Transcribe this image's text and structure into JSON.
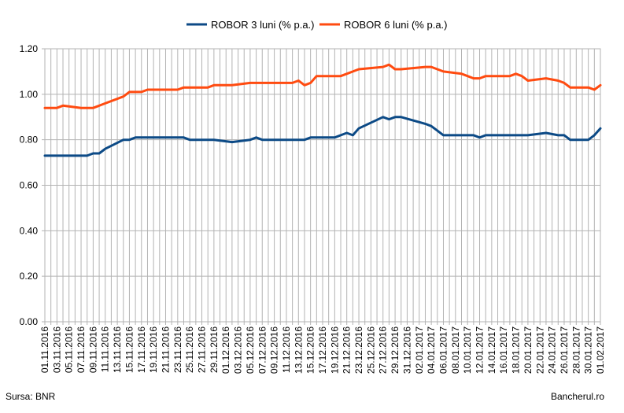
{
  "footer": {
    "source": "Sursa: BNR",
    "brand": "Bancherul.ro"
  },
  "chart_data": {
    "type": "line",
    "title": "",
    "xlabel": "",
    "ylabel": "",
    "ylim": [
      0,
      1.2
    ],
    "yticks": [
      "0.00",
      "0.20",
      "0.40",
      "0.60",
      "0.80",
      "1.00",
      "1.20"
    ],
    "grid": true,
    "legend_position": "top",
    "x": [
      "01.11.2016",
      "02.11.2016",
      "03.11.2016",
      "04.11.2016",
      "07.11.2016",
      "08.11.2016",
      "09.11.2016",
      "10.11.2016",
      "11.11.2016",
      "14.11.2016",
      "15.11.2016",
      "16.11.2016",
      "17.11.2016",
      "18.11.2016",
      "21.11.2016",
      "22.11.2016",
      "23.11.2016",
      "24.11.2016",
      "25.11.2016",
      "28.11.2016",
      "29.11.2016",
      "02.12.2016",
      "05.12.2016",
      "06.12.2016",
      "07.12.2016",
      "08.12.2016",
      "09.12.2016",
      "12.12.2016",
      "13.12.2016",
      "14.12.2016",
      "15.12.2016",
      "16.12.2016",
      "19.12.2016",
      "20.12.2016",
      "21.12.2016",
      "22.12.2016",
      "23.12.2016",
      "27.12.2016",
      "28.12.2016",
      "29.12.2016",
      "30.12.2016",
      "03.01.2017",
      "04.01.2017",
      "05.01.2017",
      "06.01.2017",
      "09.01.2017",
      "10.01.2017",
      "11.01.2017",
      "12.01.2017",
      "13.01.2017",
      "16.01.2017",
      "17.01.2017",
      "18.01.2017",
      "19.01.2017",
      "20.01.2017",
      "23.01.2017",
      "25.01.2017",
      "26.01.2017",
      "27.01.2017",
      "30.01.2017",
      "31.01.2017",
      "01.02.2017"
    ],
    "xticks": [
      "01.11.2016",
      "03.11.2016",
      "05.11.2016",
      "07.11.2016",
      "09.11.2016",
      "11.11.2016",
      "13.11.2016",
      "15.11.2016",
      "17.11.2016",
      "19.11.2016",
      "21.11.2016",
      "23.11.2016",
      "25.11.2016",
      "27.11.2016",
      "29.11.2016",
      "01.12.2016",
      "03.12.2016",
      "05.12.2016",
      "07.12.2016",
      "09.12.2016",
      "11.12.2016",
      "13.12.2016",
      "15.12.2016",
      "17.12.2016",
      "19.12.2016",
      "21.12.2016",
      "23.12.2016",
      "25.12.2016",
      "27.12.2016",
      "29.12.2016",
      "31.12.2016",
      "02.01.2017",
      "04.01.2017",
      "06.01.2017",
      "08.01.2017",
      "10.01.2017",
      "12.01.2017",
      "14.01.2017",
      "16.01.2017",
      "18.01.2017",
      "20.01.2017",
      "22.01.2017",
      "24.01.2017",
      "26.01.2017",
      "28.01.2017",
      "30.01.2017",
      "01.02.2017"
    ],
    "series": [
      {
        "name": "ROBOR 3 luni (% p.a.)",
        "color": "#0c4a86",
        "values": [
          0.73,
          0.73,
          0.73,
          0.73,
          0.73,
          0.73,
          0.74,
          0.74,
          0.76,
          0.8,
          0.8,
          0.81,
          0.81,
          0.81,
          0.81,
          0.81,
          0.81,
          0.81,
          0.8,
          0.8,
          0.8,
          0.79,
          0.8,
          0.81,
          0.8,
          0.8,
          0.8,
          0.8,
          0.8,
          0.8,
          0.81,
          0.81,
          0.81,
          0.82,
          0.83,
          0.82,
          0.85,
          0.9,
          0.89,
          0.9,
          0.9,
          0.87,
          0.86,
          0.84,
          0.82,
          0.82,
          0.82,
          0.82,
          0.81,
          0.82,
          0.82,
          0.82,
          0.82,
          0.82,
          0.82,
          0.83,
          0.82,
          0.82,
          0.8,
          0.8,
          0.82,
          0.85
        ]
      },
      {
        "name": "ROBOR 6 luni (% p.a.)",
        "color": "#ff4b10",
        "values": [
          0.94,
          0.94,
          0.94,
          0.95,
          0.94,
          0.94,
          0.94,
          0.95,
          0.96,
          0.99,
          1.01,
          1.01,
          1.01,
          1.02,
          1.02,
          1.02,
          1.02,
          1.03,
          1.03,
          1.03,
          1.04,
          1.04,
          1.05,
          1.05,
          1.05,
          1.05,
          1.05,
          1.05,
          1.06,
          1.04,
          1.05,
          1.08,
          1.08,
          1.08,
          1.09,
          1.1,
          1.11,
          1.12,
          1.13,
          1.11,
          1.11,
          1.12,
          1.12,
          1.11,
          1.1,
          1.09,
          1.08,
          1.07,
          1.07,
          1.08,
          1.08,
          1.08,
          1.09,
          1.08,
          1.06,
          1.07,
          1.06,
          1.05,
          1.03,
          1.03,
          1.02,
          1.04
        ]
      }
    ]
  }
}
